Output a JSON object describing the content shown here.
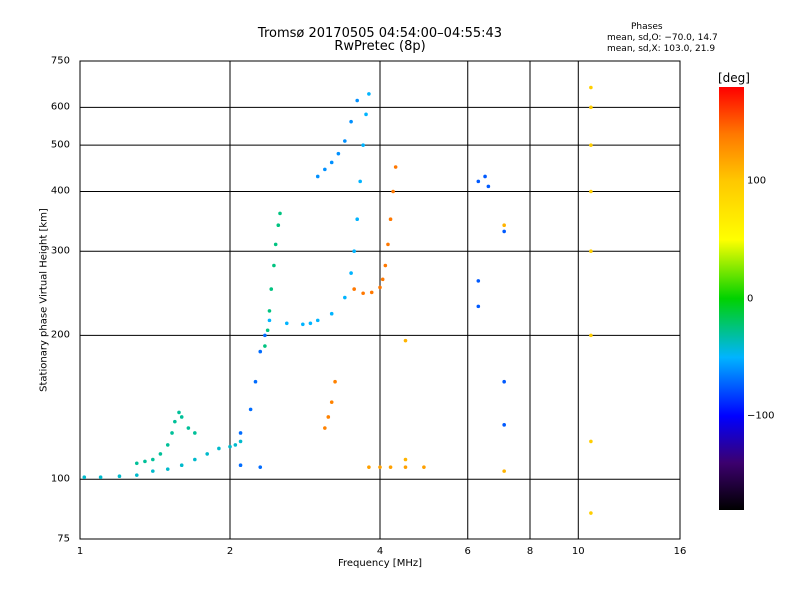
{
  "title": "Tromsø 20170505 04:54:00–04:55:43",
  "subtitle": "RwPretec (8p)",
  "stats": {
    "heading": "Phases",
    "line_o": "mean, sd,O: −70.0, 14.7",
    "line_x": "mean, sd,X: 103.0, 21.9"
  },
  "colorbar": {
    "unit": "[deg]",
    "ticks": [
      "100",
      "0",
      "−100"
    ],
    "tick_values": [
      100,
      0,
      -100
    ],
    "range": [
      -180,
      180
    ]
  },
  "chart_data": {
    "type": "scatter",
    "xlabel": "Frequency [MHz]",
    "ylabel": "Stationary phase Virtual Height [km]",
    "xscale": "log",
    "yscale": "log",
    "xlim": [
      1,
      16
    ],
    "ylim": [
      75,
      750
    ],
    "grid": true,
    "x_ticks": [
      1,
      2,
      4,
      6,
      8,
      10,
      16
    ],
    "x_tick_labels": [
      "1",
      "2",
      "4",
      "6",
      "8",
      "10",
      "16"
    ],
    "y_ticks": [
      75,
      100,
      200,
      300,
      400,
      500,
      600,
      750
    ],
    "y_tick_labels": [
      "75",
      "100",
      "200",
      "300",
      "400",
      "500",
      "600",
      "750"
    ],
    "traces": [
      {
        "name": "",
        "phase": -40,
        "points": [
          [
            1.02,
            101
          ],
          [
            1.1,
            101
          ],
          [
            1.2,
            101.5
          ],
          [
            1.3,
            102
          ],
          [
            1.4,
            104
          ],
          [
            1.5,
            105
          ],
          [
            1.6,
            107
          ],
          [
            1.7,
            110
          ],
          [
            1.8,
            113
          ],
          [
            1.9,
            116
          ],
          [
            2.0,
            117
          ],
          [
            2.05,
            118
          ],
          [
            2.1,
            120
          ]
        ]
      },
      {
        "name": "",
        "phase": -30,
        "points": [
          [
            1.3,
            108
          ],
          [
            1.35,
            109
          ],
          [
            1.4,
            110
          ],
          [
            1.45,
            113
          ],
          [
            1.5,
            118
          ],
          [
            1.53,
            125
          ],
          [
            1.55,
            132
          ],
          [
            1.58,
            138
          ],
          [
            1.6,
            135
          ],
          [
            1.65,
            128
          ],
          [
            1.7,
            125
          ]
        ]
      },
      {
        "name": "",
        "phase": -70,
        "points": [
          [
            2.1,
            125
          ],
          [
            2.2,
            140
          ],
          [
            2.25,
            160
          ],
          [
            2.3,
            185
          ],
          [
            2.35,
            200
          ]
        ]
      },
      {
        "name": "",
        "phase": -25,
        "points": [
          [
            2.35,
            190
          ],
          [
            2.38,
            205
          ],
          [
            2.4,
            225
          ],
          [
            2.42,
            250
          ],
          [
            2.45,
            280
          ],
          [
            2.47,
            310
          ],
          [
            2.5,
            340
          ],
          [
            2.52,
            360
          ]
        ]
      },
      {
        "name": "",
        "phase": -50,
        "points": [
          [
            2.4,
            215
          ],
          [
            2.6,
            212
          ],
          [
            2.8,
            211
          ],
          [
            2.9,
            212
          ],
          [
            3.0,
            215
          ],
          [
            3.2,
            222
          ],
          [
            3.4,
            240
          ],
          [
            3.5,
            270
          ],
          [
            3.55,
            300
          ],
          [
            3.6,
            350
          ],
          [
            3.65,
            420
          ],
          [
            3.7,
            500
          ],
          [
            3.75,
            580
          ],
          [
            3.8,
            640
          ]
        ]
      },
      {
        "name": "",
        "phase": -60,
        "points": [
          [
            3.0,
            430
          ],
          [
            3.1,
            445
          ],
          [
            3.2,
            460
          ],
          [
            3.3,
            480
          ],
          [
            3.4,
            510
          ],
          [
            3.5,
            560
          ],
          [
            3.6,
            620
          ]
        ]
      },
      {
        "name": "",
        "phase": 140,
        "points": [
          [
            3.55,
            250
          ],
          [
            3.7,
            245
          ],
          [
            3.85,
            246
          ],
          [
            4.0,
            252
          ],
          [
            4.05,
            262
          ],
          [
            4.1,
            280
          ],
          [
            4.15,
            310
          ],
          [
            4.2,
            350
          ],
          [
            4.25,
            400
          ],
          [
            4.3,
            450
          ]
        ]
      },
      {
        "name": "",
        "phase": 135,
        "points": [
          [
            3.1,
            128
          ],
          [
            3.15,
            135
          ],
          [
            3.2,
            145
          ],
          [
            3.25,
            160
          ]
        ]
      },
      {
        "name": "",
        "phase": 120,
        "points": [
          [
            3.8,
            106
          ],
          [
            4.0,
            106
          ],
          [
            4.2,
            106
          ],
          [
            4.5,
            106
          ],
          [
            4.9,
            106
          ]
        ]
      },
      {
        "name": "",
        "phase": -70,
        "points": [
          [
            2.1,
            107
          ],
          [
            2.3,
            106
          ]
        ]
      },
      {
        "name": "",
        "phase": 95,
        "points": [
          [
            10.6,
            85
          ],
          [
            10.6,
            120
          ],
          [
            10.6,
            200
          ],
          [
            10.6,
            300
          ],
          [
            10.6,
            400
          ],
          [
            10.6,
            500
          ],
          [
            10.6,
            600
          ],
          [
            10.6,
            660
          ]
        ]
      },
      {
        "name": "",
        "phase": -75,
        "points": [
          [
            6.3,
            230
          ],
          [
            6.3,
            260
          ],
          [
            6.3,
            420
          ],
          [
            6.5,
            430
          ],
          [
            6.6,
            410
          ],
          [
            7.1,
            330
          ],
          [
            7.1,
            160
          ],
          [
            7.1,
            130
          ]
        ]
      },
      {
        "name": "",
        "phase": 110,
        "points": [
          [
            4.5,
            195
          ],
          [
            4.5,
            110
          ],
          [
            7.1,
            104
          ],
          [
            7.1,
            340
          ]
        ]
      }
    ]
  }
}
